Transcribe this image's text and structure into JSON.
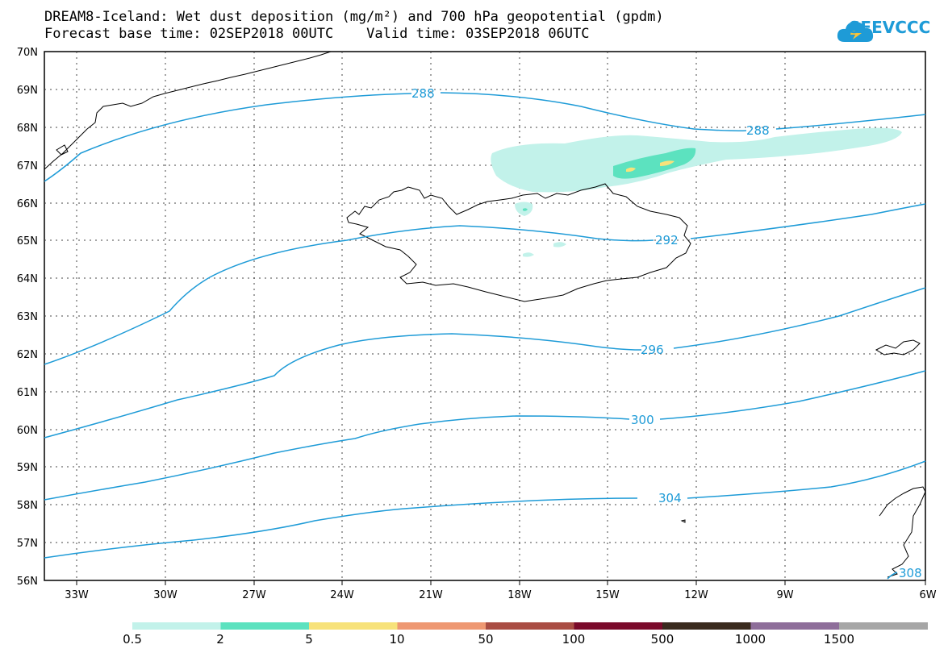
{
  "title": {
    "line1": "DREAM8-Iceland: Wet dust deposition (mg/m²) and 700 hPa geopotential (gpdm)",
    "line2": "Forecast base time: 02SEP2018 00UTC    Valid time: 03SEP2018 06UTC"
  },
  "logo": {
    "text": "SEEVCCC",
    "icon": "cloud-icon",
    "color": "#1e9bd7"
  },
  "map": {
    "lat_labels": [
      "70N",
      "69N",
      "68N",
      "67N",
      "66N",
      "65N",
      "64N",
      "63N",
      "62N",
      "61N",
      "60N",
      "59N",
      "58N",
      "57N",
      "56N"
    ],
    "lon_labels": [
      "33W",
      "30W",
      "27W",
      "24W",
      "21W",
      "18W",
      "15W",
      "12W",
      "9W",
      "6W"
    ],
    "contour_color": "#1e9bd7",
    "contour_labels": [
      "288",
      "288",
      "292",
      "296",
      "300",
      "304",
      "308"
    ]
  },
  "legend": {
    "labels": [
      "0.5",
      "2",
      "5",
      "10",
      "50",
      "100",
      "500",
      "1000",
      "1500"
    ],
    "colors": [
      "#c2f2ea",
      "#5ce2bf",
      "#f7e27a",
      "#ee9872",
      "#a94d43",
      "#7a0a2a",
      "#3a2a1e",
      "#8e6e9a",
      "#a6a6a6"
    ]
  }
}
